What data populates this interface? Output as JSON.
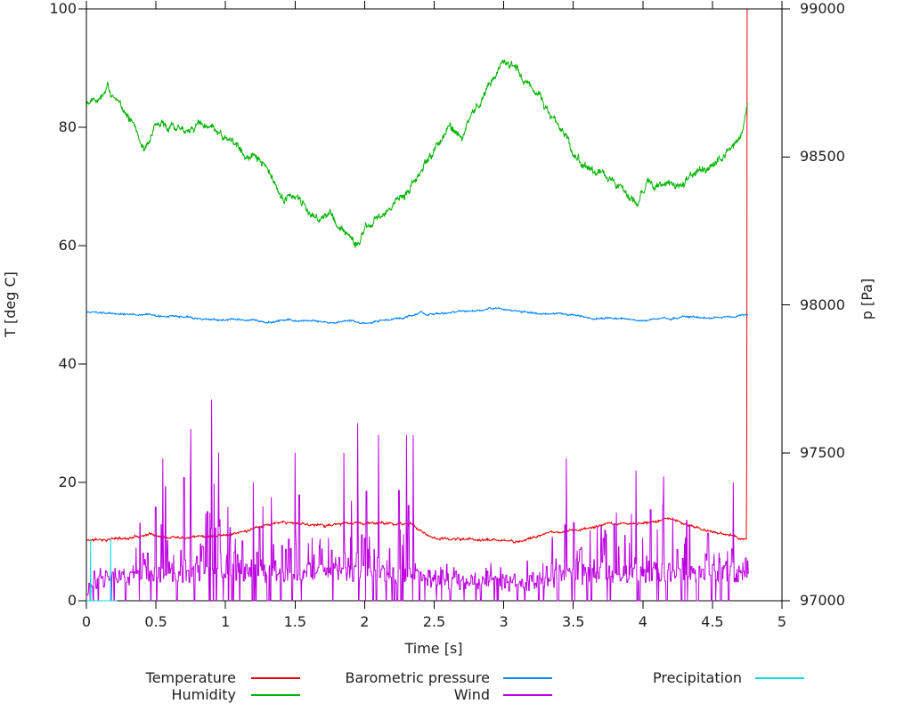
{
  "page": {
    "background": "#ffffff",
    "text_color": "#202020",
    "axis_color": "#000000"
  },
  "chart_data": {
    "type": "line",
    "title": "",
    "xlabel": "Time [s]",
    "ylabel_left": "T [deg C]",
    "ylabel_right": "p [Pa]",
    "x_range": [
      0,
      5
    ],
    "y_left_range": [
      0,
      100
    ],
    "y_right_range": [
      97000,
      99000
    ],
    "grid": false,
    "legend_position": "bottom",
    "x_ticks": {
      "values": [
        0,
        0.5,
        1,
        1.5,
        2,
        2.5,
        3,
        3.5,
        4,
        4.5,
        5
      ],
      "labels": [
        "0",
        "0.5",
        "1",
        "1.5",
        "2",
        "2.5",
        "3",
        "3.5",
        "4",
        "4.5",
        "5"
      ]
    },
    "y_left_ticks": {
      "values": [
        0,
        20,
        40,
        60,
        80,
        100
      ],
      "labels": [
        "0",
        "20",
        "40",
        "60",
        "80",
        "100"
      ]
    },
    "y_right_ticks": {
      "values": [
        97000,
        97500,
        98000,
        98500,
        99000
      ],
      "labels": [
        "97000",
        "97500",
        "98000",
        "98500",
        "99000"
      ]
    },
    "series": [
      {
        "name": "Temperature",
        "color": "#ee0000",
        "axis": "left",
        "style": "noisy-line",
        "noise_amp": 0.45,
        "seed": 11,
        "keypoints": [
          [
            0,
            10.2
          ],
          [
            0.15,
            10.4
          ],
          [
            0.3,
            10.6
          ],
          [
            0.45,
            11.3
          ],
          [
            0.55,
            10.9
          ],
          [
            0.7,
            10.9
          ],
          [
            0.85,
            11.0
          ],
          [
            1.0,
            11.2
          ],
          [
            1.15,
            11.7
          ],
          [
            1.3,
            12.9
          ],
          [
            1.45,
            13.1
          ],
          [
            1.6,
            12.9
          ],
          [
            1.75,
            12.8
          ],
          [
            1.9,
            13.0
          ],
          [
            2.05,
            13.1
          ],
          [
            2.2,
            13.0
          ],
          [
            2.35,
            12.9
          ],
          [
            2.45,
            11.0
          ],
          [
            2.55,
            10.5
          ],
          [
            2.7,
            10.4
          ],
          [
            2.85,
            10.3
          ],
          [
            3.0,
            10.1
          ],
          [
            3.1,
            10.0
          ],
          [
            3.25,
            11.0
          ],
          [
            3.4,
            11.6
          ],
          [
            3.55,
            12.1
          ],
          [
            3.7,
            12.7
          ],
          [
            3.85,
            13.1
          ],
          [
            4.0,
            13.0
          ],
          [
            4.1,
            13.4
          ],
          [
            4.18,
            13.9
          ],
          [
            4.3,
            13.0
          ],
          [
            4.45,
            12.0
          ],
          [
            4.55,
            11.4
          ],
          [
            4.65,
            11.0
          ],
          [
            4.72,
            10.5
          ],
          [
            4.746,
            10.3
          ],
          [
            4.75,
            100
          ]
        ]
      },
      {
        "name": "Humidity",
        "color": "#00b400",
        "axis": "left",
        "style": "noisy-line",
        "noise_amp": 1.5,
        "seed": 22,
        "keypoints": [
          [
            0,
            84
          ],
          [
            0.05,
            85.5
          ],
          [
            0.1,
            85.5
          ],
          [
            0.15,
            87.5
          ],
          [
            0.2,
            84.5
          ],
          [
            0.25,
            83.5
          ],
          [
            0.3,
            82.5
          ],
          [
            0.35,
            80
          ],
          [
            0.42,
            76.5
          ],
          [
            0.5,
            80
          ],
          [
            0.6,
            80.5
          ],
          [
            0.7,
            80
          ],
          [
            0.8,
            80.5
          ],
          [
            0.9,
            79.5
          ],
          [
            1.0,
            78
          ],
          [
            1.1,
            76.5
          ],
          [
            1.2,
            75
          ],
          [
            1.3,
            72.5
          ],
          [
            1.4,
            68.5
          ],
          [
            1.5,
            67.5
          ],
          [
            1.6,
            66
          ],
          [
            1.7,
            64.5
          ],
          [
            1.75,
            66
          ],
          [
            1.8,
            63.5
          ],
          [
            1.9,
            61
          ],
          [
            1.95,
            60.5
          ],
          [
            2.0,
            63
          ],
          [
            2.1,
            64.5
          ],
          [
            2.2,
            66.5
          ],
          [
            2.3,
            69
          ],
          [
            2.4,
            72
          ],
          [
            2.5,
            76
          ],
          [
            2.6,
            80.5
          ],
          [
            2.7,
            78.5
          ],
          [
            2.8,
            83
          ],
          [
            2.9,
            87
          ],
          [
            3.0,
            91.5
          ],
          [
            3.05,
            91
          ],
          [
            3.15,
            88
          ],
          [
            3.25,
            85.5
          ],
          [
            3.35,
            82
          ],
          [
            3.45,
            78
          ],
          [
            3.55,
            74.5
          ],
          [
            3.65,
            72
          ],
          [
            3.75,
            71
          ],
          [
            3.85,
            69.5
          ],
          [
            3.95,
            68
          ],
          [
            4.05,
            70.5
          ],
          [
            4.15,
            70.5
          ],
          [
            4.25,
            70
          ],
          [
            4.35,
            71.5
          ],
          [
            4.45,
            73
          ],
          [
            4.55,
            74.5
          ],
          [
            4.65,
            76.5
          ],
          [
            4.72,
            79
          ],
          [
            4.755,
            84.5
          ]
        ]
      },
      {
        "name": "Barometric pressure",
        "color": "#0084ff",
        "axis": "right",
        "style": "noisy-line",
        "noise_amp": 7,
        "seed": 33,
        "keypoints": [
          [
            0,
            97975
          ],
          [
            0.2,
            97970
          ],
          [
            0.4,
            97966
          ],
          [
            0.6,
            97960
          ],
          [
            0.8,
            97952
          ],
          [
            1.0,
            97950
          ],
          [
            1.2,
            97946
          ],
          [
            1.3,
            97940
          ],
          [
            1.45,
            97950
          ],
          [
            1.6,
            97944
          ],
          [
            1.75,
            97940
          ],
          [
            1.9,
            97946
          ],
          [
            2.0,
            97938
          ],
          [
            2.1,
            97946
          ],
          [
            2.2,
            97952
          ],
          [
            2.3,
            97958
          ],
          [
            2.4,
            97972
          ],
          [
            2.5,
            97968
          ],
          [
            2.6,
            97972
          ],
          [
            2.7,
            97976
          ],
          [
            2.8,
            97982
          ],
          [
            2.9,
            97990
          ],
          [
            3.0,
            97982
          ],
          [
            3.1,
            97976
          ],
          [
            3.2,
            97972
          ],
          [
            3.35,
            97970
          ],
          [
            3.5,
            97966
          ],
          [
            3.6,
            97958
          ],
          [
            3.7,
            97952
          ],
          [
            3.8,
            97956
          ],
          [
            3.9,
            97950
          ],
          [
            4.0,
            97948
          ],
          [
            4.1,
            97954
          ],
          [
            4.2,
            97958
          ],
          [
            4.35,
            97958
          ],
          [
            4.5,
            97954
          ],
          [
            4.6,
            97958
          ],
          [
            4.7,
            97962
          ],
          [
            4.755,
            97966
          ]
        ]
      },
      {
        "name": "Wind",
        "color": "#bc00e0",
        "axis": "left",
        "style": "spiky",
        "seed": 44,
        "x_end": 4.76,
        "envelope": [
          [
            0,
            0.5,
            1
          ],
          [
            0.05,
            3,
            3
          ],
          [
            0.3,
            3.5,
            5
          ],
          [
            0.45,
            4,
            15
          ],
          [
            0.7,
            4,
            17
          ],
          [
            1.0,
            4.5,
            15
          ],
          [
            1.3,
            4,
            14
          ],
          [
            1.6,
            4.5,
            15
          ],
          [
            1.9,
            4,
            17
          ],
          [
            2.2,
            4,
            16
          ],
          [
            2.42,
            3.5,
            10
          ],
          [
            2.55,
            2.5,
            5
          ],
          [
            2.8,
            2.5,
            4
          ],
          [
            3.1,
            2.5,
            5
          ],
          [
            3.3,
            3,
            7
          ],
          [
            3.42,
            3.5,
            13
          ],
          [
            3.7,
            4,
            13
          ],
          [
            4.0,
            4,
            13
          ],
          [
            4.3,
            4,
            11
          ],
          [
            4.55,
            4,
            11
          ],
          [
            4.76,
            4,
            10
          ]
        ],
        "peaks": [
          [
            0.55,
            24
          ],
          [
            0.75,
            29
          ],
          [
            0.9,
            34
          ],
          [
            0.95,
            25
          ],
          [
            1.2,
            20
          ],
          [
            1.5,
            25
          ],
          [
            1.85,
            25
          ],
          [
            1.95,
            30
          ],
          [
            2.1,
            28
          ],
          [
            2.3,
            28
          ],
          [
            2.35,
            28
          ],
          [
            3.45,
            24
          ],
          [
            3.95,
            22
          ],
          [
            4.15,
            21
          ],
          [
            4.65,
            20
          ]
        ]
      },
      {
        "name": "Precipitation",
        "color": "#00dde6",
        "axis": "left",
        "style": "segments",
        "points": [
          [
            0,
            0
          ],
          [
            0.028,
            0
          ],
          [
            0.03,
            10.5
          ],
          [
            0.032,
            0
          ],
          [
            0.173,
            0
          ],
          [
            0.175,
            10.5
          ],
          [
            0.177,
            0
          ],
          [
            0.22,
            0
          ]
        ]
      }
    ],
    "legend": {
      "items": [
        {
          "label": "Temperature",
          "color": "#ee0000",
          "row": 0,
          "col": 0
        },
        {
          "label": "Humidity",
          "color": "#00b400",
          "row": 1,
          "col": 0
        },
        {
          "label": "Barometric pressure",
          "color": "#0084ff",
          "row": 0,
          "col": 1
        },
        {
          "label": "Wind",
          "color": "#bc00e0",
          "row": 1,
          "col": 1
        },
        {
          "label": "Precipitation",
          "color": "#00dde6",
          "row": 0,
          "col": 2
        }
      ]
    }
  }
}
